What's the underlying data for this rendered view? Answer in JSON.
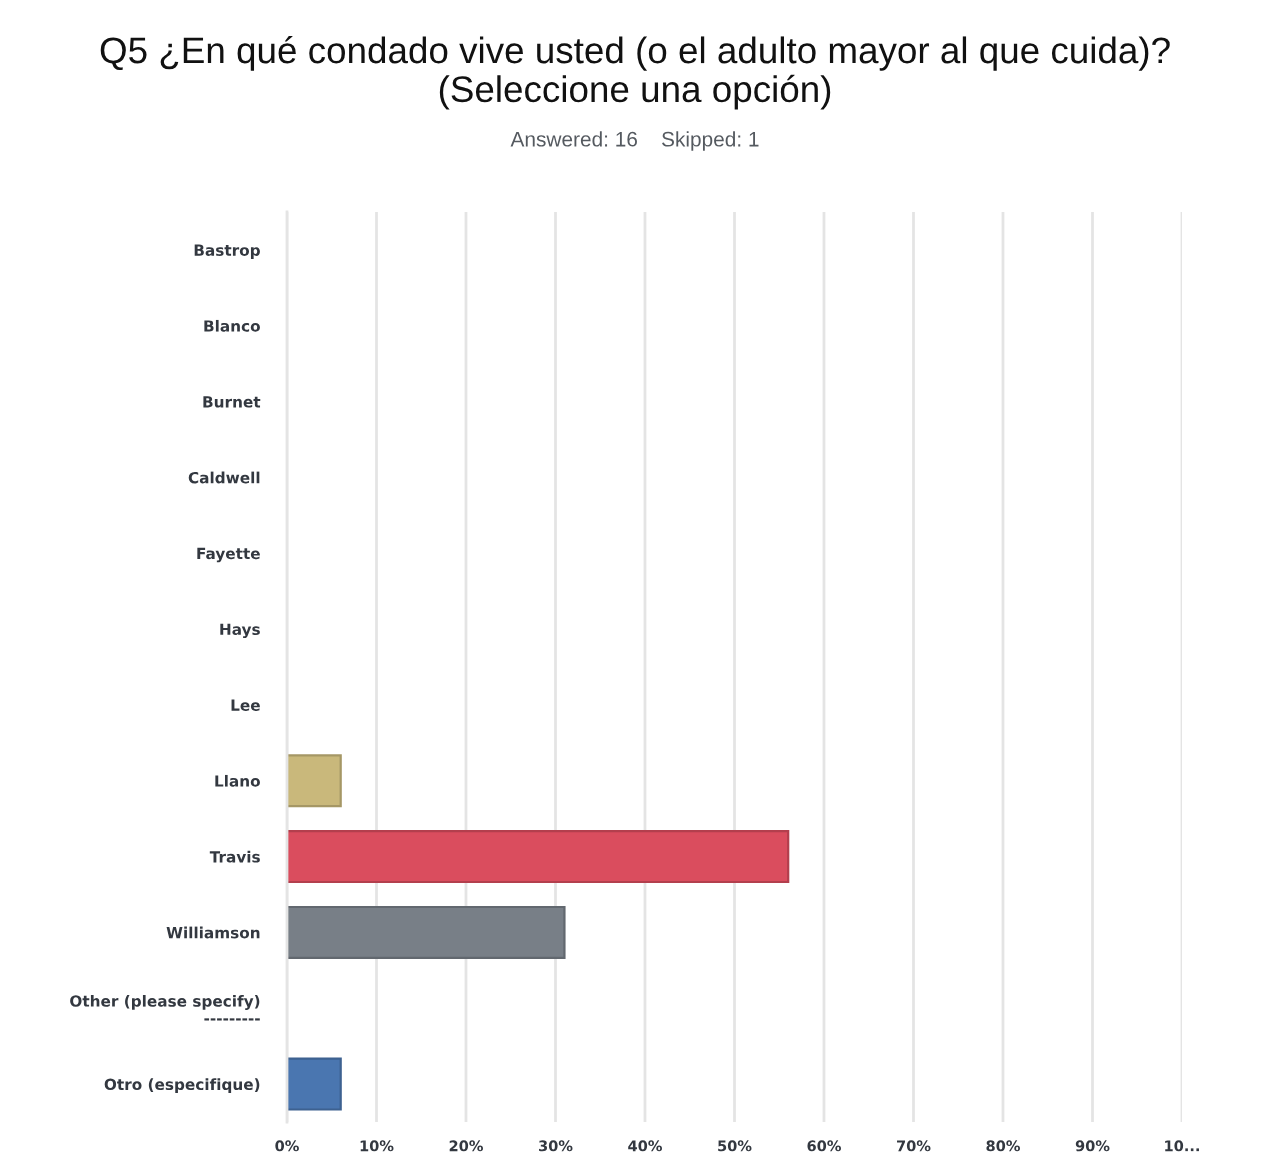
{
  "chart_data": {
    "type": "bar",
    "orientation": "horizontal",
    "title": "Q5 ¿En qué condado vive usted (o el adulto mayor al que cuida)?\n(Seleccione una opción)",
    "subtitle": "Answered: 16    Skipped: 1",
    "categories": [
      "Bastrop",
      "Blanco",
      "Burnet",
      "Caldwell",
      "Fayette",
      "Hays",
      "Lee",
      "Llano",
      "Travis",
      "Williamson",
      "Other (please specify)\n---------",
      "Otro (especifique)"
    ],
    "values": [
      0,
      0,
      0,
      0,
      0,
      0,
      0,
      6,
      56,
      31,
      0,
      6
    ],
    "colors": [
      null,
      null,
      null,
      null,
      null,
      null,
      null,
      "#c9b87b",
      "#da4d5e",
      "#787f87",
      null,
      "#4a76b0"
    ],
    "xlim": [
      0,
      100
    ],
    "xticks": [
      {
        "value": 0,
        "label": "0%"
      },
      {
        "value": 10,
        "label": "10%"
      },
      {
        "value": 20,
        "label": "20%"
      },
      {
        "value": 30,
        "label": "30%"
      },
      {
        "value": 40,
        "label": "40%"
      },
      {
        "value": 50,
        "label": "50%"
      },
      {
        "value": 60,
        "label": "60%"
      },
      {
        "value": 70,
        "label": "70%"
      },
      {
        "value": 80,
        "label": "80%"
      },
      {
        "value": 90,
        "label": "90%"
      },
      {
        "value": 100,
        "label": "10..."
      }
    ],
    "grid": "x"
  }
}
